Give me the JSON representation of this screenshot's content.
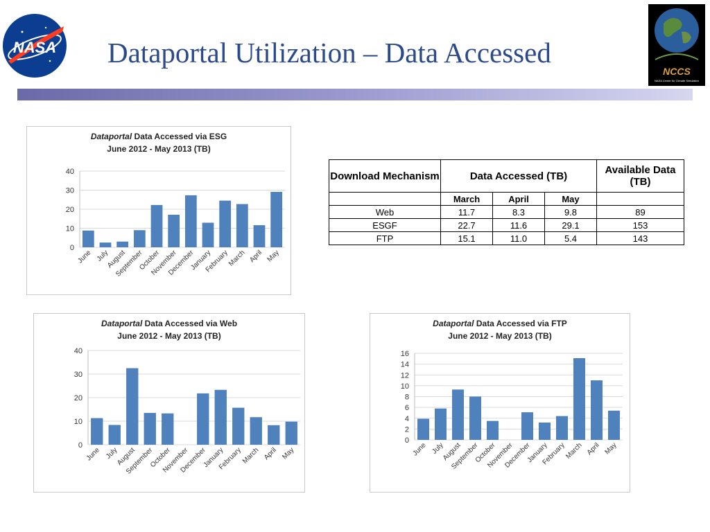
{
  "title": "Dataportal Utilization – Data Accessed",
  "logos": {
    "left_text": "NASA",
    "right_text": "NCCS",
    "right_subtext": "NASA Center for Climate Simulation"
  },
  "colors": {
    "bar": "#4f81bd",
    "title": "#2b4a8a",
    "grid": "#d9d9d9"
  },
  "table": {
    "h_mech": "Download Mechanism",
    "h_data": "Data Accessed (TB)",
    "h_avail": "Available Data (TB)",
    "months": [
      "March",
      "April",
      "May"
    ],
    "rows": [
      {
        "name": "Web",
        "march": "11.7",
        "april": "8.3",
        "may": "9.8",
        "available": "89"
      },
      {
        "name": "ESGF",
        "march": "22.7",
        "april": "11.6",
        "may": "29.1",
        "available": "153"
      },
      {
        "name": "FTP",
        "march": "15.1",
        "april": "11.0",
        "may": "5.4",
        "available": "143"
      }
    ]
  },
  "chart_data": [
    {
      "type": "bar",
      "title_italic": "Dataportal",
      "title_rest": " Data Accessed via ESG",
      "subtitle": "June 2012 - May 2013 (TB)",
      "categories": [
        "June",
        "July",
        "August",
        "September",
        "October",
        "November",
        "December",
        "January",
        "February",
        "March",
        "April",
        "May"
      ],
      "values": [
        8.8,
        2.5,
        3.0,
        9.0,
        22.2,
        17.1,
        27.3,
        12.9,
        24.5,
        22.7,
        11.6,
        29.1
      ],
      "ylim": [
        0,
        40
      ],
      "yticks": [
        "0",
        "10",
        "20",
        "30",
        "40"
      ],
      "grid": true
    },
    {
      "type": "bar",
      "title_italic": "Dataportal",
      "title_rest": " Data Accessed via Web",
      "subtitle": "June 2012 - May 2013 (TB)",
      "categories": [
        "June",
        "July",
        "August",
        "September",
        "October",
        "November",
        "December",
        "January",
        "February",
        "March",
        "April",
        "May"
      ],
      "values": [
        11.3,
        8.4,
        32.5,
        13.5,
        13.3,
        0,
        21.8,
        23.3,
        15.7,
        11.7,
        8.3,
        9.8
      ],
      "ylim": [
        0,
        40
      ],
      "yticks": [
        "0",
        "10",
        "20",
        "30",
        "40"
      ],
      "grid": true
    },
    {
      "type": "bar",
      "title_italic": "Dataportal",
      "title_rest": " Data Accessed via FTP",
      "subtitle": "June 2012 - May 2013 (TB)",
      "categories": [
        "June",
        "July",
        "August",
        "September",
        "October",
        "November",
        "December",
        "January",
        "February",
        "March",
        "April",
        "May"
      ],
      "values": [
        3.9,
        5.8,
        9.3,
        8.0,
        3.5,
        0,
        5.1,
        3.2,
        4.4,
        15.1,
        11.0,
        5.4
      ],
      "ylim": [
        0,
        16
      ],
      "yticks": [
        "0",
        "2",
        "4",
        "6",
        "8",
        "10",
        "12",
        "14",
        "16"
      ],
      "grid": true
    }
  ]
}
